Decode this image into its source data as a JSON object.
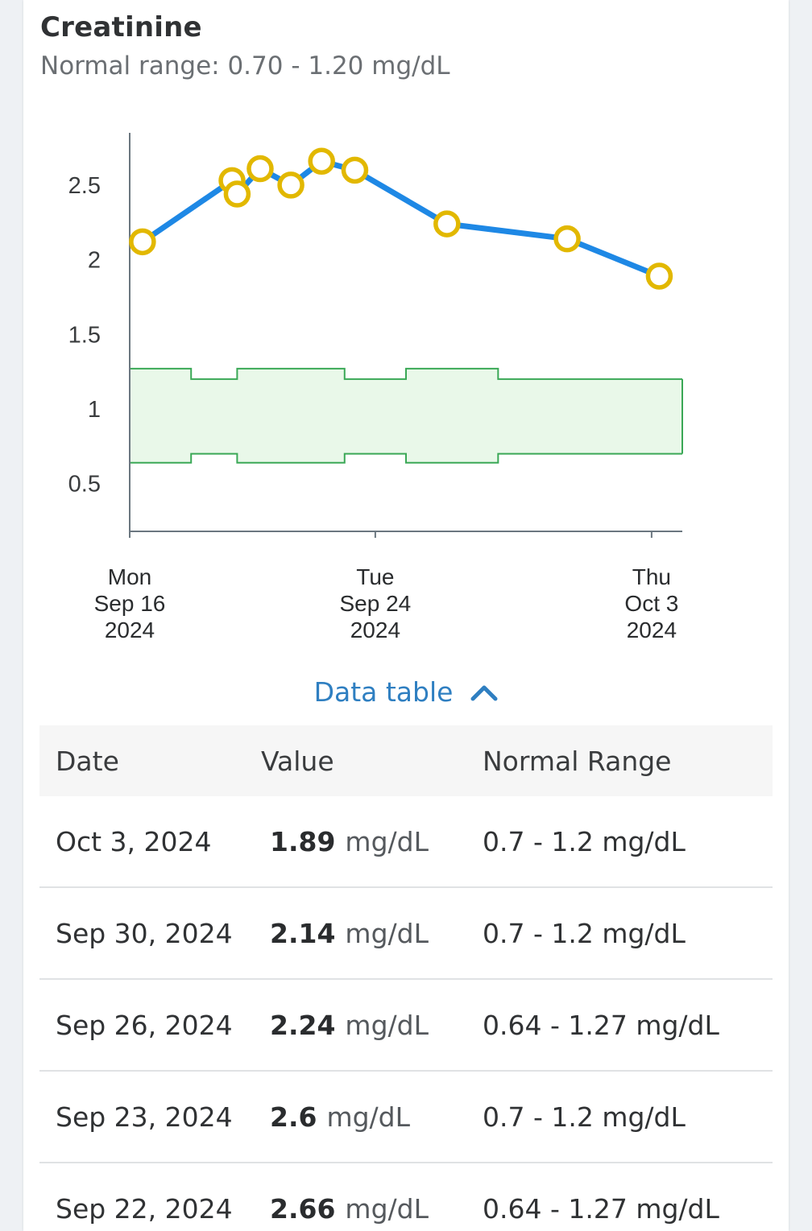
{
  "card": {
    "title": "Creatinine",
    "subtitle": "Normal range: 0.70 - 1.20 mg/dL"
  },
  "chart_data": {
    "type": "line",
    "y_ticks": [
      "0.5",
      "1",
      "1.5",
      "2",
      "2.5"
    ],
    "ylim": [
      0.18,
      2.85
    ],
    "x_ticks": [
      {
        "date": "2024-09-16",
        "lines": [
          "Mon",
          "Sep 16",
          "2024"
        ]
      },
      {
        "date": "2024-09-24",
        "lines": [
          "Tue",
          "Sep 24",
          "2024"
        ]
      },
      {
        "date": "2024-10-03",
        "lines": [
          "Thu",
          "Oct 3",
          "2024"
        ]
      }
    ],
    "xlim": [
      "2024-09-16",
      "2024-10-04"
    ],
    "series": [
      {
        "points": [
          {
            "x": "2024-09-16T10:00",
            "y": 2.12
          },
          {
            "x": "2024-09-19T08:00",
            "y": 2.53
          },
          {
            "x": "2024-09-19T12:00",
            "y": 2.44
          },
          {
            "x": "2024-09-20T06:00",
            "y": 2.61
          },
          {
            "x": "2024-09-21T06:00",
            "y": 2.5
          },
          {
            "x": "2024-09-22T06:00",
            "y": 2.66
          },
          {
            "x": "2024-09-23T08:00",
            "y": 2.6
          },
          {
            "x": "2024-09-26T08:00",
            "y": 2.24
          },
          {
            "x": "2024-09-30T06:00",
            "y": 2.14
          },
          {
            "x": "2024-10-03T06:00",
            "y": 1.89
          }
        ]
      }
    ],
    "normal_range_band": [
      {
        "from": "2024-09-16",
        "to": "2024-09-18",
        "low": 0.64,
        "high": 1.27
      },
      {
        "from": "2024-09-18",
        "to": "2024-09-19T12:00",
        "low": 0.7,
        "high": 1.2
      },
      {
        "from": "2024-09-19T12:00",
        "to": "2024-09-23",
        "low": 0.64,
        "high": 1.27
      },
      {
        "from": "2024-09-23",
        "to": "2024-09-25",
        "low": 0.7,
        "high": 1.2
      },
      {
        "from": "2024-09-25",
        "to": "2024-09-28",
        "low": 0.64,
        "high": 1.27
      },
      {
        "from": "2024-09-28",
        "to": "2024-10-04",
        "low": 0.7,
        "high": 1.2
      }
    ],
    "colors": {
      "line": "#1e88e5",
      "marker_fill": "#ffffff",
      "marker_stroke": "#e2b800",
      "band_fill": "#e9f8e9",
      "band_stroke": "#3aa856",
      "axis": "#6b7780"
    }
  },
  "toggle": {
    "label": "Data table",
    "icon": "chevron-up-icon"
  },
  "table": {
    "headers": {
      "date": "Date",
      "value": "Value",
      "range": "Normal Range"
    },
    "rows": [
      {
        "date": "Oct 3, 2024",
        "value": "1.89",
        "unit": "mg/dL",
        "range": "0.7 - 1.2 mg/dL"
      },
      {
        "date": "Sep 30, 2024",
        "value": "2.14",
        "unit": "mg/dL",
        "range": "0.7 - 1.2 mg/dL"
      },
      {
        "date": "Sep 26, 2024",
        "value": "2.24",
        "unit": "mg/dL",
        "range": "0.64 - 1.27 mg/dL"
      },
      {
        "date": "Sep 23, 2024",
        "value": "2.6",
        "unit": "mg/dL",
        "range": "0.7 - 1.2 mg/dL"
      },
      {
        "date": "Sep 22, 2024",
        "value": "2.66",
        "unit": "mg/dL",
        "range": "0.64 - 1.27 mg/dL"
      }
    ]
  }
}
